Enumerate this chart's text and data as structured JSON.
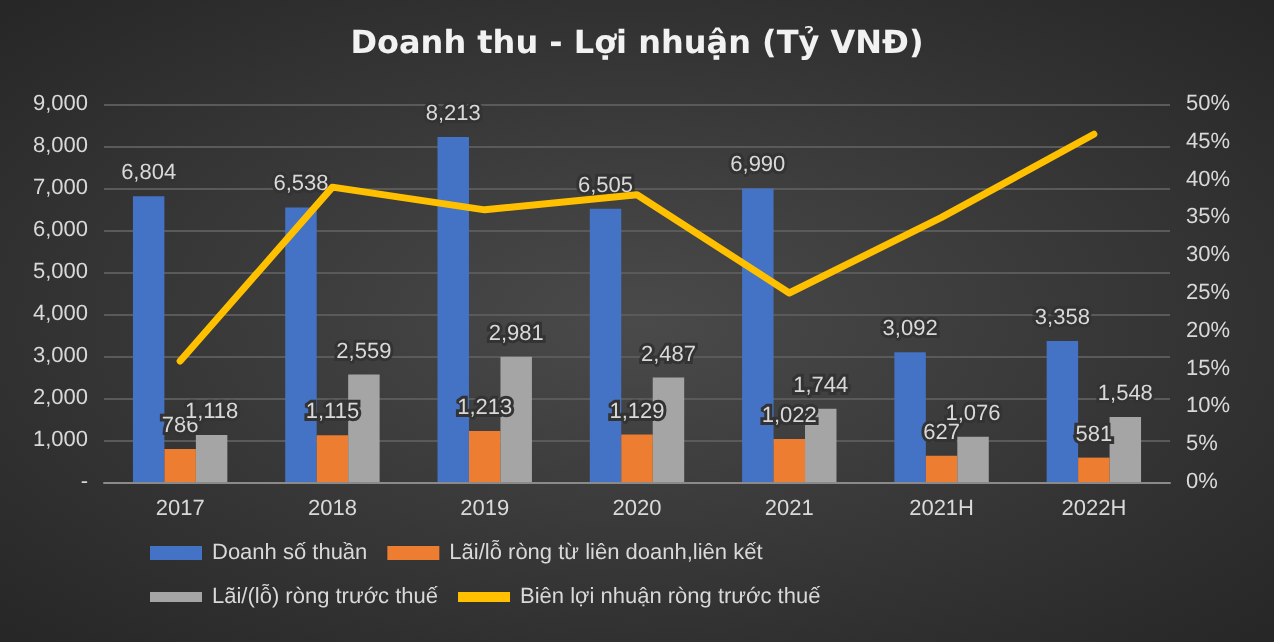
{
  "chart_data": {
    "type": "bar",
    "title": "Doanh thu - Lợi nhuận (Tỷ VNĐ)",
    "categories": [
      "2017",
      "2018",
      "2019",
      "2020",
      "2021",
      "2021H",
      "2022H"
    ],
    "series": [
      {
        "name": "Doanh số thuần",
        "color": "#4472c4",
        "values": [
          6804,
          6538,
          8213,
          6505,
          6990,
          3092,
          3358
        ],
        "value_labels": [
          "6,804",
          "6,538",
          "8,213",
          "6,505",
          "6,990",
          "3,092",
          "3,358"
        ]
      },
      {
        "name": "Lãi/lỗ ròng từ liên doanh,liên kết",
        "color": "#ed7d31",
        "values": [
          786,
          1115,
          1213,
          1129,
          1022,
          627,
          581
        ],
        "value_labels": [
          "786",
          "1,115",
          "1,213",
          "1,129",
          "1,022",
          "627",
          "581"
        ]
      },
      {
        "name": "Lãi/(lỗ) ròng trước thuế",
        "color": "#a5a5a5",
        "values": [
          1118,
          2559,
          2981,
          2487,
          1744,
          1076,
          1548
        ],
        "value_labels": [
          "1,118",
          "2,559",
          "2,981",
          "2,487",
          "1,744",
          "1,076",
          "1,548"
        ]
      },
      {
        "name": "Biên lợi nhuận ròng trước thuế",
        "type": "line",
        "axis": "y2",
        "color": "#ffc000",
        "values": [
          16,
          39,
          36,
          38,
          25,
          35,
          46
        ]
      }
    ],
    "ylim": [
      0,
      9000
    ],
    "yticks": [
      {
        "value": 0,
        "label": "-"
      },
      {
        "value": 1000,
        "label": "1,000"
      },
      {
        "value": 2000,
        "label": "2,000"
      },
      {
        "value": 3000,
        "label": "3,000"
      },
      {
        "value": 4000,
        "label": "4,000"
      },
      {
        "value": 5000,
        "label": "5,000"
      },
      {
        "value": 6000,
        "label": "6,000"
      },
      {
        "value": 7000,
        "label": "7,000"
      },
      {
        "value": 8000,
        "label": "8,000"
      },
      {
        "value": 9000,
        "label": "9,000"
      }
    ],
    "y2lim": [
      0,
      50
    ],
    "y2ticks": [
      {
        "value": 0,
        "label": "0%"
      },
      {
        "value": 5,
        "label": "5%"
      },
      {
        "value": 10,
        "label": "10%"
      },
      {
        "value": 15,
        "label": "15%"
      },
      {
        "value": 20,
        "label": "20%"
      },
      {
        "value": 25,
        "label": "25%"
      },
      {
        "value": 30,
        "label": "30%"
      },
      {
        "value": 35,
        "label": "35%"
      },
      {
        "value": 40,
        "label": "40%"
      },
      {
        "value": 45,
        "label": "45%"
      },
      {
        "value": 50,
        "label": "50%"
      }
    ],
    "grid": "y",
    "legend": "bottom",
    "marker": "none",
    "line_style": "solid"
  }
}
